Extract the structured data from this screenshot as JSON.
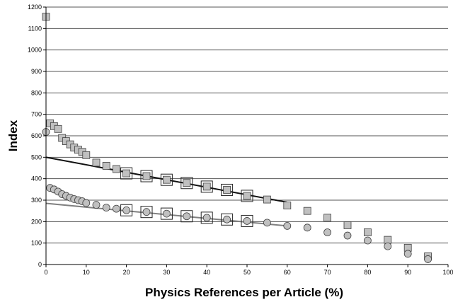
{
  "chart_data": {
    "type": "scatter",
    "title": "",
    "xlabel": "Physics References per Article (%)",
    "ylabel": "Index",
    "xlim": [
      0,
      100
    ],
    "ylim": [
      0,
      1200
    ],
    "x_ticks": [
      "0",
      "10",
      "20",
      "30",
      "40",
      "50",
      "60",
      "70",
      "80",
      "90",
      "100"
    ],
    "y_ticks": [
      "0",
      "100",
      "200",
      "300",
      "400",
      "500",
      "600",
      "700",
      "800",
      "900",
      "1000",
      "1100",
      "1200"
    ],
    "grid": "horizontal",
    "legend": "none",
    "colors": {
      "marker_fill": "#c0c0c0",
      "marker_stroke": "#404040",
      "upper_fit": "#111111",
      "lower_fit": "#808080",
      "grid": "#555555"
    },
    "series": [
      {
        "marker": "square",
        "points": [
          [
            0,
            1155
          ],
          [
            1,
            658
          ],
          [
            2,
            645
          ],
          [
            3,
            632
          ],
          [
            4,
            590
          ],
          [
            5,
            575
          ],
          [
            6,
            560
          ],
          [
            7,
            545
          ],
          [
            8,
            535
          ],
          [
            9,
            525
          ],
          [
            10,
            510
          ],
          [
            12.5,
            475
          ],
          [
            15,
            460
          ],
          [
            17.5,
            445
          ],
          [
            20,
            425
          ],
          [
            25,
            412
          ],
          [
            30,
            395
          ],
          [
            35,
            380
          ],
          [
            40,
            363
          ],
          [
            45,
            348
          ],
          [
            50,
            320
          ],
          [
            55,
            303
          ],
          [
            60,
            275
          ],
          [
            65,
            250
          ],
          [
            70,
            218
          ],
          [
            75,
            183
          ],
          [
            80,
            150
          ],
          [
            85,
            115
          ],
          [
            90,
            78
          ],
          [
            95,
            38
          ]
        ],
        "highlighted_x": [
          20,
          25,
          30,
          35,
          40,
          45,
          50
        ]
      },
      {
        "marker": "circle",
        "points": [
          [
            0,
            618
          ],
          [
            1,
            357
          ],
          [
            2,
            350
          ],
          [
            3,
            340
          ],
          [
            4,
            328
          ],
          [
            5,
            320
          ],
          [
            6,
            312
          ],
          [
            7,
            305
          ],
          [
            8,
            300
          ],
          [
            9,
            295
          ],
          [
            10,
            287
          ],
          [
            12.5,
            278
          ],
          [
            15,
            265
          ],
          [
            17.5,
            260
          ],
          [
            20,
            253
          ],
          [
            25,
            245
          ],
          [
            30,
            237
          ],
          [
            35,
            225
          ],
          [
            40,
            218
          ],
          [
            45,
            210
          ],
          [
            50,
            203
          ],
          [
            55,
            195
          ],
          [
            60,
            180
          ],
          [
            65,
            172
          ],
          [
            70,
            150
          ],
          [
            75,
            135
          ],
          [
            80,
            112
          ],
          [
            85,
            85
          ],
          [
            90,
            50
          ],
          [
            95,
            25
          ]
        ],
        "highlighted_x": [
          20,
          25,
          30,
          35,
          40,
          45,
          50
        ]
      }
    ],
    "trendlines": [
      {
        "x": [
          0,
          60
        ],
        "y": [
          500,
          290
        ]
      },
      {
        "x": [
          0,
          60
        ],
        "y": [
          285,
          180
        ]
      }
    ]
  }
}
